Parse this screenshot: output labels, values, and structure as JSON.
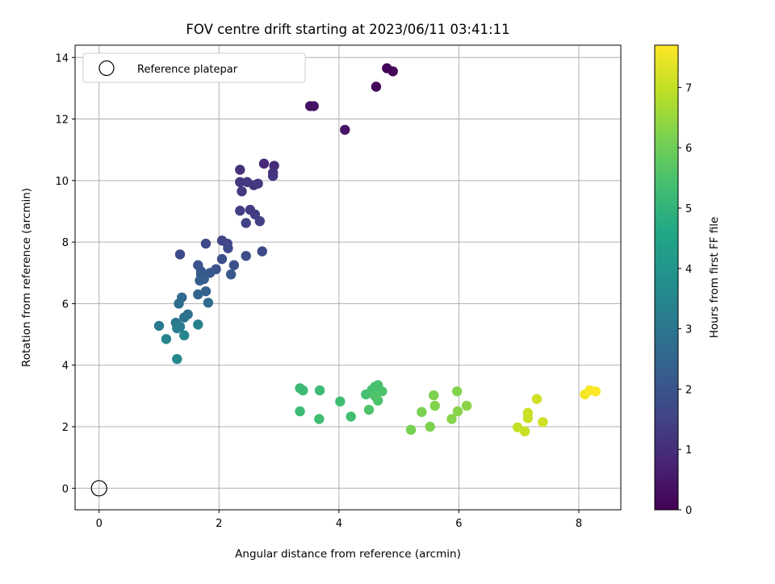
{
  "chart_data": {
    "type": "scatter",
    "title": "FOV centre drift starting at 2023/06/11 03:41:11",
    "xlabel": "Angular distance from reference (arcmin)",
    "ylabel": "Rotation from reference (arcmin)",
    "xlim": [
      -0.4,
      8.7
    ],
    "ylim": [
      -0.7,
      14.4
    ],
    "xticks": [
      0,
      2,
      4,
      6,
      8
    ],
    "yticks": [
      0,
      2,
      4,
      6,
      8,
      10,
      12,
      14
    ],
    "grid": true,
    "legend": {
      "position": "top-left",
      "label": "Reference platepar"
    },
    "reference_point": {
      "x": 0,
      "y": 0
    },
    "colorbar": {
      "label": "Hours from first FF file",
      "min": 0,
      "max": 7.7,
      "ticks": [
        0,
        1,
        2,
        3,
        4,
        5,
        6,
        7
      ],
      "colormap": "viridis"
    },
    "points": [
      {
        "x": 4.8,
        "y": 13.65,
        "h": 0.05
      },
      {
        "x": 4.9,
        "y": 13.55,
        "h": 0.1
      },
      {
        "x": 4.62,
        "y": 13.05,
        "h": 0.15
      },
      {
        "x": 3.52,
        "y": 12.42,
        "h": 0.3
      },
      {
        "x": 3.58,
        "y": 12.42,
        "h": 0.35
      },
      {
        "x": 4.1,
        "y": 11.65,
        "h": 0.45
      },
      {
        "x": 2.75,
        "y": 10.55,
        "h": 0.9
      },
      {
        "x": 2.92,
        "y": 10.48,
        "h": 1.0
      },
      {
        "x": 2.35,
        "y": 10.35,
        "h": 1.05
      },
      {
        "x": 2.9,
        "y": 10.25,
        "h": 1.1
      },
      {
        "x": 2.9,
        "y": 10.15,
        "h": 1.15
      },
      {
        "x": 2.35,
        "y": 9.95,
        "h": 1.2
      },
      {
        "x": 2.47,
        "y": 9.95,
        "h": 1.2
      },
      {
        "x": 2.58,
        "y": 9.85,
        "h": 1.25
      },
      {
        "x": 2.65,
        "y": 9.9,
        "h": 1.25
      },
      {
        "x": 2.38,
        "y": 9.65,
        "h": 1.3
      },
      {
        "x": 2.52,
        "y": 9.05,
        "h": 1.35
      },
      {
        "x": 2.35,
        "y": 9.02,
        "h": 1.4
      },
      {
        "x": 2.6,
        "y": 8.9,
        "h": 1.4
      },
      {
        "x": 2.68,
        "y": 8.68,
        "h": 1.45
      },
      {
        "x": 2.45,
        "y": 8.62,
        "h": 1.5
      },
      {
        "x": 2.05,
        "y": 8.05,
        "h": 1.55
      },
      {
        "x": 2.14,
        "y": 7.95,
        "h": 1.6
      },
      {
        "x": 1.78,
        "y": 7.95,
        "h": 1.65
      },
      {
        "x": 2.15,
        "y": 7.8,
        "h": 1.7
      },
      {
        "x": 2.72,
        "y": 7.7,
        "h": 1.75
      },
      {
        "x": 1.35,
        "y": 7.6,
        "h": 1.75
      },
      {
        "x": 2.45,
        "y": 7.55,
        "h": 1.8
      },
      {
        "x": 2.05,
        "y": 7.45,
        "h": 1.85
      },
      {
        "x": 2.25,
        "y": 7.25,
        "h": 1.9
      },
      {
        "x": 1.65,
        "y": 7.25,
        "h": 1.95
      },
      {
        "x": 1.95,
        "y": 7.12,
        "h": 2.0
      },
      {
        "x": 1.7,
        "y": 7.05,
        "h": 2.05
      },
      {
        "x": 1.85,
        "y": 7.0,
        "h": 2.1
      },
      {
        "x": 2.2,
        "y": 6.95,
        "h": 2.1
      },
      {
        "x": 1.7,
        "y": 6.95,
        "h": 2.2
      },
      {
        "x": 1.75,
        "y": 6.8,
        "h": 2.25
      },
      {
        "x": 1.68,
        "y": 6.75,
        "h": 2.3
      },
      {
        "x": 1.78,
        "y": 6.4,
        "h": 2.4
      },
      {
        "x": 1.65,
        "y": 6.3,
        "h": 2.5
      },
      {
        "x": 1.38,
        "y": 6.2,
        "h": 2.6
      },
      {
        "x": 1.82,
        "y": 6.03,
        "h": 2.7
      },
      {
        "x": 1.33,
        "y": 6.0,
        "h": 2.75
      },
      {
        "x": 1.48,
        "y": 5.65,
        "h": 2.85
      },
      {
        "x": 1.42,
        "y": 5.55,
        "h": 2.95
      },
      {
        "x": 1.28,
        "y": 5.38,
        "h": 3.05
      },
      {
        "x": 1.0,
        "y": 5.28,
        "h": 3.1
      },
      {
        "x": 1.35,
        "y": 5.25,
        "h": 3.2
      },
      {
        "x": 1.3,
        "y": 5.2,
        "h": 3.25
      },
      {
        "x": 1.65,
        "y": 5.32,
        "h": 3.35
      },
      {
        "x": 1.42,
        "y": 4.97,
        "h": 3.5
      },
      {
        "x": 1.12,
        "y": 4.85,
        "h": 3.45
      },
      {
        "x": 1.3,
        "y": 4.2,
        "h": 3.6
      },
      {
        "x": 3.35,
        "y": 3.25,
        "h": 5.2
      },
      {
        "x": 3.4,
        "y": 3.18,
        "h": 5.2
      },
      {
        "x": 3.68,
        "y": 3.18,
        "h": 5.25
      },
      {
        "x": 3.35,
        "y": 2.5,
        "h": 5.25
      },
      {
        "x": 3.67,
        "y": 2.25,
        "h": 5.3
      },
      {
        "x": 4.02,
        "y": 2.82,
        "h": 5.3
      },
      {
        "x": 4.2,
        "y": 2.33,
        "h": 5.35
      },
      {
        "x": 4.45,
        "y": 3.05,
        "h": 5.4
      },
      {
        "x": 4.55,
        "y": 3.2,
        "h": 5.4
      },
      {
        "x": 4.6,
        "y": 3.3,
        "h": 5.45
      },
      {
        "x": 4.65,
        "y": 3.35,
        "h": 5.45
      },
      {
        "x": 4.72,
        "y": 3.15,
        "h": 5.5
      },
      {
        "x": 4.65,
        "y": 2.85,
        "h": 5.5
      },
      {
        "x": 4.6,
        "y": 3.0,
        "h": 5.55
      },
      {
        "x": 4.5,
        "y": 2.55,
        "h": 5.55
      },
      {
        "x": 5.2,
        "y": 1.9,
        "h": 6.1
      },
      {
        "x": 5.38,
        "y": 2.48,
        "h": 6.15
      },
      {
        "x": 5.52,
        "y": 2.0,
        "h": 6.2
      },
      {
        "x": 5.58,
        "y": 3.02,
        "h": 6.2
      },
      {
        "x": 5.6,
        "y": 2.68,
        "h": 6.25
      },
      {
        "x": 5.88,
        "y": 2.25,
        "h": 6.3
      },
      {
        "x": 5.98,
        "y": 2.5,
        "h": 6.3
      },
      {
        "x": 5.97,
        "y": 3.15,
        "h": 6.25
      },
      {
        "x": 6.13,
        "y": 2.68,
        "h": 6.35
      },
      {
        "x": 6.98,
        "y": 1.98,
        "h": 7.0
      },
      {
        "x": 7.1,
        "y": 1.85,
        "h": 7.05
      },
      {
        "x": 7.15,
        "y": 2.28,
        "h": 7.05
      },
      {
        "x": 7.15,
        "y": 2.45,
        "h": 7.1
      },
      {
        "x": 7.3,
        "y": 2.9,
        "h": 7.15
      },
      {
        "x": 7.4,
        "y": 2.15,
        "h": 7.15
      },
      {
        "x": 8.1,
        "y": 3.05,
        "h": 7.6
      },
      {
        "x": 8.18,
        "y": 3.18,
        "h": 7.65
      },
      {
        "x": 8.28,
        "y": 3.15,
        "h": 7.7
      }
    ]
  }
}
